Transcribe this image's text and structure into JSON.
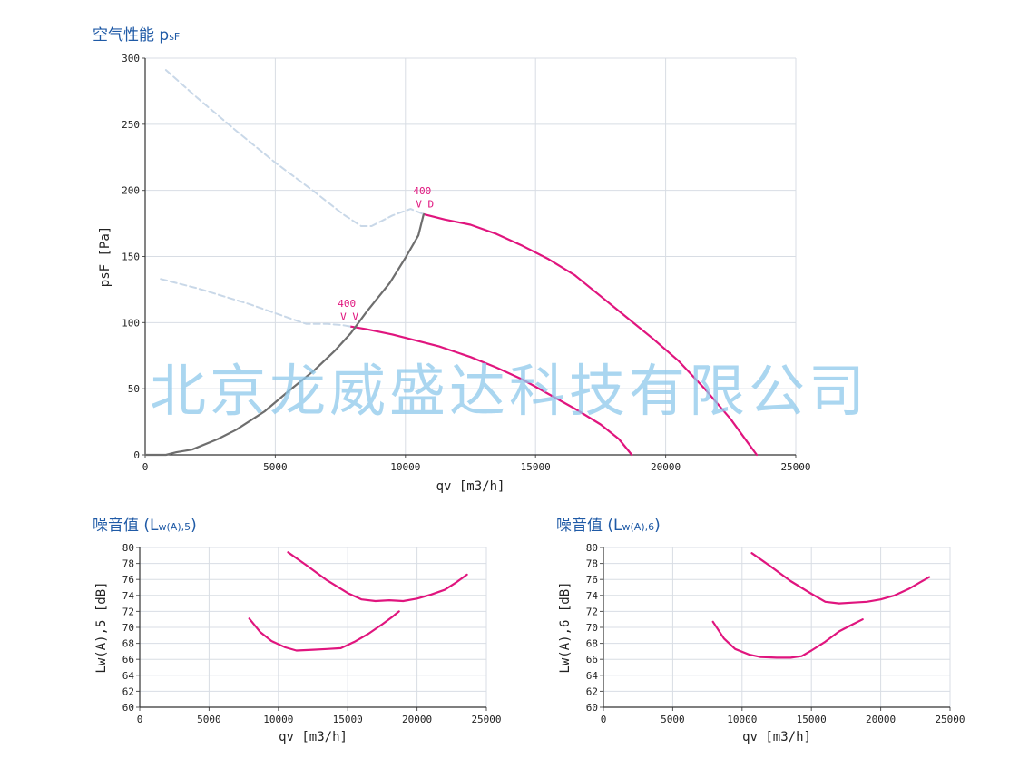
{
  "sections": {
    "pressure": {
      "title": "空气性能 p",
      "title_sub": "sF"
    },
    "noise5": {
      "title": "噪音值 (L",
      "title_sub": "w(A),5",
      "title_end": ")"
    },
    "noise6": {
      "title": "噪音值 (L",
      "title_sub": "w(A),6",
      "title_end": ")"
    }
  },
  "watermark": "北京龙威盛达科技有限公司",
  "colors": {
    "curve": "#e0157e",
    "system": "#6e6e6e",
    "dashed": "#c9d8e8",
    "grid": "#d8dde4",
    "title": "#1f5aa6"
  },
  "chart_data": [
    {
      "id": "pressure",
      "type": "line",
      "xlabel": "qv [m3/h]",
      "ylabel": "psF [Pa]",
      "xlim": [
        0,
        25000
      ],
      "ylim": [
        0,
        300
      ],
      "xticks": [
        0,
        5000,
        10000,
        15000,
        20000,
        25000
      ],
      "yticks": [
        0,
        50,
        100,
        150,
        200,
        250,
        300
      ],
      "grid": true,
      "series": [
        {
          "role": "curve",
          "points": [
            [
              10700,
              182
            ],
            [
              11500,
              178
            ],
            [
              12500,
              174
            ],
            [
              13500,
              167
            ],
            [
              14500,
              158
            ],
            [
              15500,
              148
            ],
            [
              16500,
              136
            ],
            [
              17500,
              120
            ],
            [
              18500,
              104
            ],
            [
              19500,
              88
            ],
            [
              20500,
              71
            ],
            [
              21500,
              50
            ],
            [
              22500,
              27
            ],
            [
              23200,
              8
            ],
            [
              23500,
              0
            ]
          ]
        },
        {
          "role": "curve",
          "points": [
            [
              7900,
              97
            ],
            [
              8500,
              95
            ],
            [
              9500,
              91
            ],
            [
              10500,
              86
            ],
            [
              11300,
              82
            ],
            [
              12500,
              74
            ],
            [
              13500,
              66
            ],
            [
              14500,
              57
            ],
            [
              15500,
              46
            ],
            [
              16500,
              35
            ],
            [
              17500,
              23
            ],
            [
              18200,
              12
            ],
            [
              18700,
              0
            ]
          ]
        },
        {
          "role": "system",
          "points": [
            [
              0,
              0
            ],
            [
              800,
              0
            ],
            [
              1200,
              2
            ],
            [
              1800,
              4
            ],
            [
              2800,
              12
            ],
            [
              3500,
              19
            ],
            [
              4600,
              33
            ],
            [
              5500,
              48
            ],
            [
              6500,
              64
            ],
            [
              7300,
              79
            ],
            [
              7900,
              92
            ],
            [
              8500,
              108
            ],
            [
              9400,
              130
            ],
            [
              10000,
              149
            ],
            [
              10500,
              166
            ],
            [
              10700,
              182
            ]
          ]
        },
        {
          "role": "dashed",
          "points": [
            [
              800,
              291
            ],
            [
              2000,
              270
            ],
            [
              3500,
              245
            ],
            [
              5000,
              221
            ],
            [
              6500,
              199
            ],
            [
              7600,
              182
            ],
            [
              8300,
              173
            ],
            [
              8700,
              173
            ],
            [
              9500,
              181
            ],
            [
              10200,
              186
            ],
            [
              10700,
              182
            ]
          ]
        },
        {
          "role": "dashed",
          "points": [
            [
              600,
              133
            ],
            [
              2000,
              126
            ],
            [
              4000,
              114
            ],
            [
              5600,
              103
            ],
            [
              6200,
              99
            ],
            [
              7000,
              99
            ],
            [
              7600,
              98
            ],
            [
              7900,
              97
            ]
          ]
        }
      ],
      "annotations": [
        {
          "text": "400",
          "x": 10300,
          "y": 197
        },
        {
          "text": "V D",
          "x": 10400,
          "y": 187
        },
        {
          "text": "400",
          "x": 7400,
          "y": 112
        },
        {
          "text": "V V",
          "x": 7500,
          "y": 102
        }
      ]
    },
    {
      "id": "noise5",
      "type": "line",
      "xlabel": "qv [m3/h]",
      "ylabel": "Lw(A),5 [dB]",
      "xlim": [
        0,
        25000
      ],
      "ylim": [
        60,
        80
      ],
      "xticks": [
        0,
        5000,
        10000,
        15000,
        20000,
        25000
      ],
      "yticks": [
        60,
        62,
        64,
        66,
        68,
        70,
        72,
        74,
        76,
        78,
        80
      ],
      "grid": true,
      "series": [
        {
          "role": "curve",
          "points": [
            [
              10700,
              79.4
            ],
            [
              12000,
              77.8
            ],
            [
              13500,
              75.9
            ],
            [
              15000,
              74.3
            ],
            [
              16000,
              73.5
            ],
            [
              17000,
              73.3
            ],
            [
              18000,
              73.4
            ],
            [
              19000,
              73.3
            ],
            [
              20000,
              73.6
            ],
            [
              21000,
              74.1
            ],
            [
              22000,
              74.7
            ],
            [
              22800,
              75.6
            ],
            [
              23600,
              76.6
            ]
          ]
        },
        {
          "role": "curve",
          "points": [
            [
              7900,
              71.1
            ],
            [
              8700,
              69.4
            ],
            [
              9500,
              68.3
            ],
            [
              10500,
              67.5
            ],
            [
              11300,
              67.1
            ],
            [
              12500,
              67.2
            ],
            [
              13500,
              67.3
            ],
            [
              14500,
              67.4
            ],
            [
              15500,
              68.2
            ],
            [
              16500,
              69.2
            ],
            [
              17500,
              70.4
            ],
            [
              18200,
              71.3
            ],
            [
              18700,
              72.0
            ]
          ]
        }
      ]
    },
    {
      "id": "noise6",
      "type": "line",
      "xlabel": "qv [m3/h]",
      "ylabel": "Lw(A),6 [dB]",
      "xlim": [
        0,
        25000
      ],
      "ylim": [
        60,
        80
      ],
      "xticks": [
        0,
        5000,
        10000,
        15000,
        20000,
        25000
      ],
      "yticks": [
        60,
        62,
        64,
        66,
        68,
        70,
        72,
        74,
        76,
        78,
        80
      ],
      "grid": true,
      "series": [
        {
          "role": "curve",
          "points": [
            [
              10700,
              79.3
            ],
            [
              12000,
              77.7
            ],
            [
              13500,
              75.8
            ],
            [
              15000,
              74.2
            ],
            [
              16000,
              73.2
            ],
            [
              17000,
              73.0
            ],
            [
              18000,
              73.1
            ],
            [
              19000,
              73.2
            ],
            [
              20000,
              73.5
            ],
            [
              21000,
              74.0
            ],
            [
              22000,
              74.8
            ],
            [
              22800,
              75.6
            ],
            [
              23500,
              76.3
            ]
          ]
        },
        {
          "role": "curve",
          "points": [
            [
              7900,
              70.7
            ],
            [
              8700,
              68.6
            ],
            [
              9500,
              67.3
            ],
            [
              10500,
              66.6
            ],
            [
              11300,
              66.3
            ],
            [
              12500,
              66.2
            ],
            [
              13500,
              66.2
            ],
            [
              14300,
              66.4
            ],
            [
              15000,
              67.1
            ],
            [
              16000,
              68.2
            ],
            [
              17000,
              69.5
            ],
            [
              18000,
              70.4
            ],
            [
              18700,
              71.0
            ]
          ]
        }
      ]
    }
  ]
}
